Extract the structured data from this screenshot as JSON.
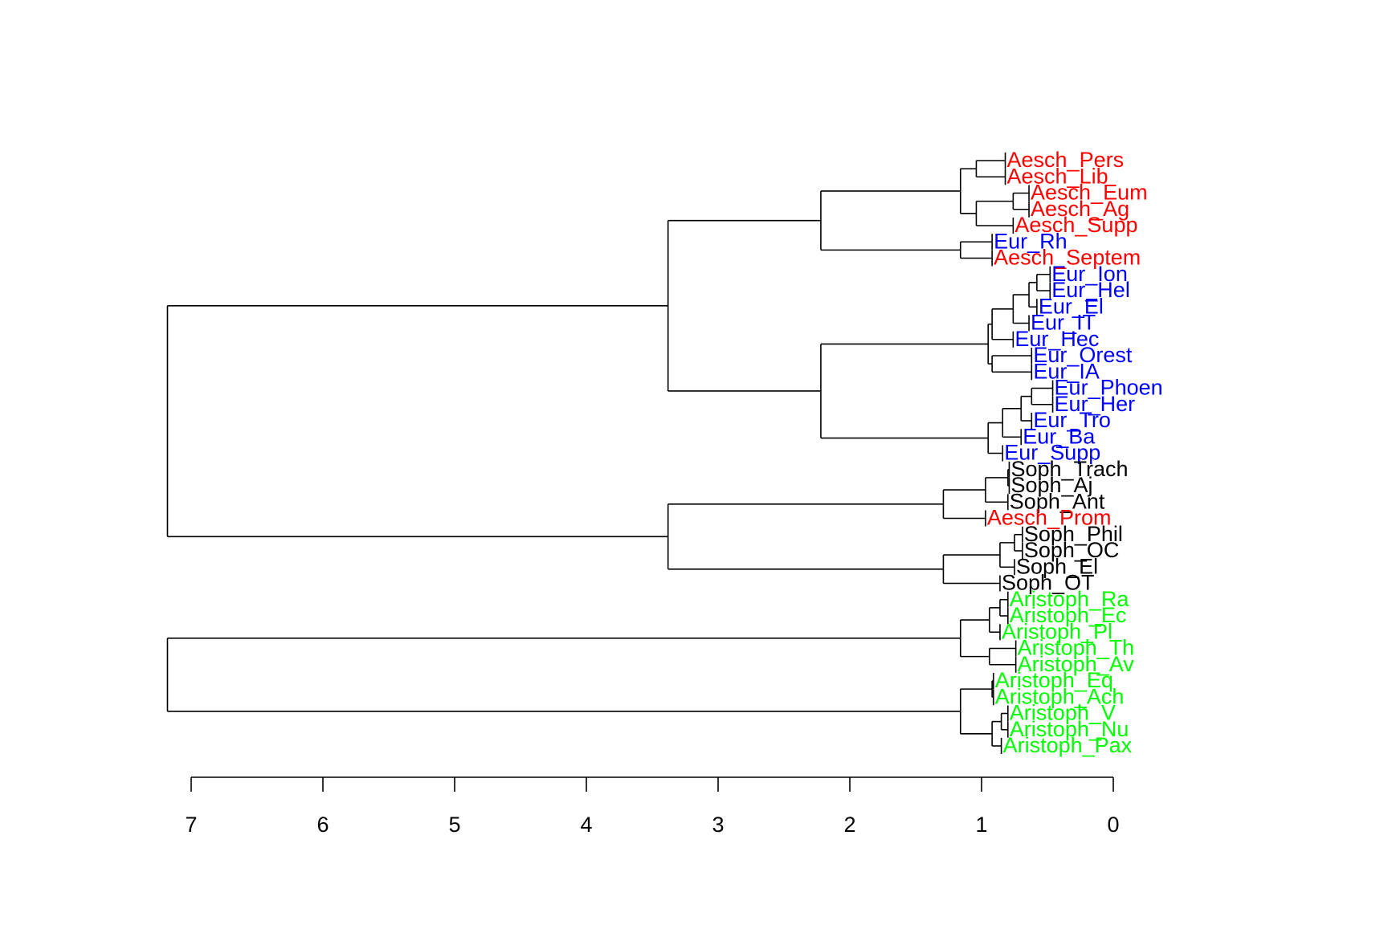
{
  "chart_data": {
    "type": "dendrogram",
    "orientation": "horizontal",
    "title": "",
    "xlabel": "",
    "ylabel": "",
    "axis": {
      "ticks": [
        7,
        6,
        5,
        4,
        3,
        2,
        1,
        0
      ],
      "tick_labels": [
        "7",
        "6",
        "5",
        "4",
        "3",
        "2",
        "1",
        "0"
      ],
      "range": [
        7.2,
        0
      ]
    },
    "group_colors": {
      "aeschylus": "#ff0000",
      "euripides": "#0000ff",
      "sophocles": "#000000",
      "aristophanes": "#00ff00"
    },
    "leaves": [
      {
        "label": "Aesch_Pers",
        "height": 0.82,
        "group": "aeschylus"
      },
      {
        "label": "Aesch_Lib",
        "height": 0.82,
        "group": "aeschylus"
      },
      {
        "label": "Aesch_Eum",
        "height": 0.64,
        "group": "aeschylus"
      },
      {
        "label": "Aesch_Ag",
        "height": 0.64,
        "group": "aeschylus"
      },
      {
        "label": "Aesch_Supp",
        "height": 0.76,
        "group": "aeschylus"
      },
      {
        "label": "Eur_Rh",
        "height": 0.92,
        "group": "euripides"
      },
      {
        "label": "Aesch_Septem",
        "height": 0.92,
        "group": "aeschylus"
      },
      {
        "label": "Eur_Ion",
        "height": 0.48,
        "group": "euripides"
      },
      {
        "label": "Eur_Hel",
        "height": 0.48,
        "group": "euripides"
      },
      {
        "label": "Eur_El",
        "height": 0.58,
        "group": "euripides"
      },
      {
        "label": "Eur_IT",
        "height": 0.64,
        "group": "euripides"
      },
      {
        "label": "Eur_Hec",
        "height": 0.76,
        "group": "euripides"
      },
      {
        "label": "Eur_Orest",
        "height": 0.62,
        "group": "euripides"
      },
      {
        "label": "Eur_IA",
        "height": 0.62,
        "group": "euripides"
      },
      {
        "label": "Eur_Phoen",
        "height": 0.46,
        "group": "euripides"
      },
      {
        "label": "Eur_Her",
        "height": 0.46,
        "group": "euripides"
      },
      {
        "label": "Eur_Tro",
        "height": 0.62,
        "group": "euripides"
      },
      {
        "label": "Eur_Ba",
        "height": 0.7,
        "group": "euripides"
      },
      {
        "label": "Eur_Supp",
        "height": 0.84,
        "group": "euripides"
      },
      {
        "label": "Soph_Trach",
        "height": 0.79,
        "group": "sophocles"
      },
      {
        "label": "Soph_Aj",
        "height": 0.79,
        "group": "sophocles"
      },
      {
        "label": "Soph_Ant",
        "height": 0.8,
        "group": "sophocles"
      },
      {
        "label": "Aesch_Prom",
        "height": 0.97,
        "group": "aeschylus"
      },
      {
        "label": "Soph_Phil",
        "height": 0.69,
        "group": "sophocles"
      },
      {
        "label": "Soph_OC",
        "height": 0.69,
        "group": "sophocles"
      },
      {
        "label": "Soph_El",
        "height": 0.75,
        "group": "sophocles"
      },
      {
        "label": "Soph_OT",
        "height": 0.86,
        "group": "sophocles"
      },
      {
        "label": "Aristoph_Ra",
        "height": 0.8,
        "group": "aristophanes"
      },
      {
        "label": "Aristoph_Ec",
        "height": 0.8,
        "group": "aristophanes"
      },
      {
        "label": "Aristoph_Pl",
        "height": 0.86,
        "group": "aristophanes"
      },
      {
        "label": "Aristoph_Th",
        "height": 0.74,
        "group": "aristophanes"
      },
      {
        "label": "Aristoph_Av",
        "height": 0.74,
        "group": "aristophanes"
      },
      {
        "label": "Aristoph_Eq",
        "height": 0.91,
        "group": "aristophanes"
      },
      {
        "label": "Aristoph_Ach",
        "height": 0.91,
        "group": "aristophanes"
      },
      {
        "label": "Aristoph_V",
        "height": 0.8,
        "group": "aristophanes"
      },
      {
        "label": "Aristoph_Nu",
        "height": 0.8,
        "group": "aristophanes"
      },
      {
        "label": "Aristoph_Pax",
        "height": 0.85,
        "group": "aristophanes"
      }
    ],
    "merges": [
      {
        "a": "Aesch_Pers",
        "b": "Aesch_Lib",
        "height": 1.04
      },
      {
        "a": "Aesch_Eum",
        "b": "Aesch_Ag",
        "height": 0.76
      },
      {
        "a": "m2",
        "b": "Aesch_Supp",
        "height": 1.04
      },
      {
        "a": "m1",
        "b": "m3",
        "height": 1.16
      },
      {
        "a": "Eur_Rh",
        "b": "Aesch_Septem",
        "height": 1.16
      },
      {
        "a": "m4",
        "b": "m5",
        "height": 2.22
      },
      {
        "a": "Eur_Ion",
        "b": "Eur_Hel",
        "height": 0.58
      },
      {
        "a": "m7",
        "b": "Eur_El",
        "height": 0.64
      },
      {
        "a": "m8",
        "b": "Eur_IT",
        "height": 0.76
      },
      {
        "a": "m9",
        "b": "Eur_Hec",
        "height": 0.92
      },
      {
        "a": "Eur_Orest",
        "b": "Eur_IA",
        "height": 0.92
      },
      {
        "a": "m10",
        "b": "m11",
        "height": 0.95
      },
      {
        "a": "Eur_Phoen",
        "b": "Eur_Her",
        "height": 0.62
      },
      {
        "a": "m13",
        "b": "Eur_Tro",
        "height": 0.7
      },
      {
        "a": "m14",
        "b": "Eur_Ba",
        "height": 0.84
      },
      {
        "a": "m15",
        "b": "Eur_Supp",
        "height": 0.95
      },
      {
        "a": "m12",
        "b": "m16",
        "height": 2.22
      },
      {
        "a": "m6",
        "b": "m17",
        "height": 3.38
      },
      {
        "a": "Soph_Trach",
        "b": "Soph_Aj",
        "height": 0.8
      },
      {
        "a": "m19",
        "b": "Soph_Ant",
        "height": 0.97
      },
      {
        "a": "m20",
        "b": "Aesch_Prom",
        "height": 1.29
      },
      {
        "a": "Soph_Phil",
        "b": "Soph_OC",
        "height": 0.75
      },
      {
        "a": "m22",
        "b": "Soph_El",
        "height": 0.86
      },
      {
        "a": "m23",
        "b": "Soph_OT",
        "height": 1.29
      },
      {
        "a": "m21",
        "b": "m24",
        "height": 3.38
      },
      {
        "a": "m18",
        "b": "m25",
        "height": 7.18
      },
      {
        "a": "Aristoph_Ra",
        "b": "Aristoph_Ec",
        "height": 0.86
      },
      {
        "a": "m27",
        "b": "Aristoph_Pl",
        "height": 0.94
      },
      {
        "a": "Aristoph_Th",
        "b": "Aristoph_Av",
        "height": 0.94
      },
      {
        "a": "m28",
        "b": "m29",
        "height": 1.16
      },
      {
        "a": "Aristoph_Eq",
        "b": "Aristoph_Ach",
        "height": 0.92
      },
      {
        "a": "Aristoph_V",
        "b": "Aristoph_Nu",
        "height": 0.85
      },
      {
        "a": "m32",
        "b": "Aristoph_Pax",
        "height": 0.92
      },
      {
        "a": "m31",
        "b": "m33",
        "height": 1.16
      },
      {
        "a": "m30",
        "b": "m34",
        "height": 7.18
      }
    ]
  }
}
